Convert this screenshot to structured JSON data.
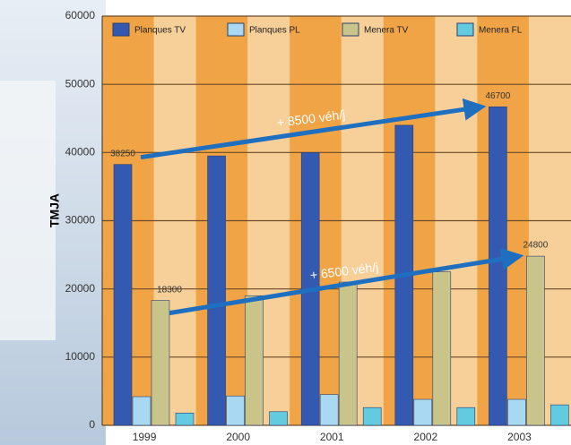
{
  "chart_data": {
    "type": "bar",
    "y_label": "TMJA",
    "categories": [
      "1999",
      "2000",
      "2001",
      "2002",
      "2003"
    ],
    "series": [
      {
        "name": "Planques TV",
        "color": "#3459b0",
        "values": [
          38250,
          39500,
          40000,
          44000,
          46700
        ]
      },
      {
        "name": "Planques PL",
        "color": "#a9d9f2",
        "values": [
          4200,
          4300,
          4500,
          3800,
          3800
        ]
      },
      {
        "name": "Menera TV",
        "color": "#c9c48a",
        "values": [
          18300,
          19000,
          21000,
          22500,
          24800
        ]
      },
      {
        "name": "Menera FL",
        "color": "#62cbe0",
        "values": [
          1800,
          2000,
          2600,
          2600,
          3000
        ]
      }
    ],
    "annotations": [
      "+ 8500 véh/j",
      "+ 6500 véh/j"
    ],
    "ylim": [
      0,
      60000
    ],
    "yticks": [
      0,
      10000,
      20000,
      30000,
      40000,
      50000,
      60000
    ],
    "grid": true
  }
}
